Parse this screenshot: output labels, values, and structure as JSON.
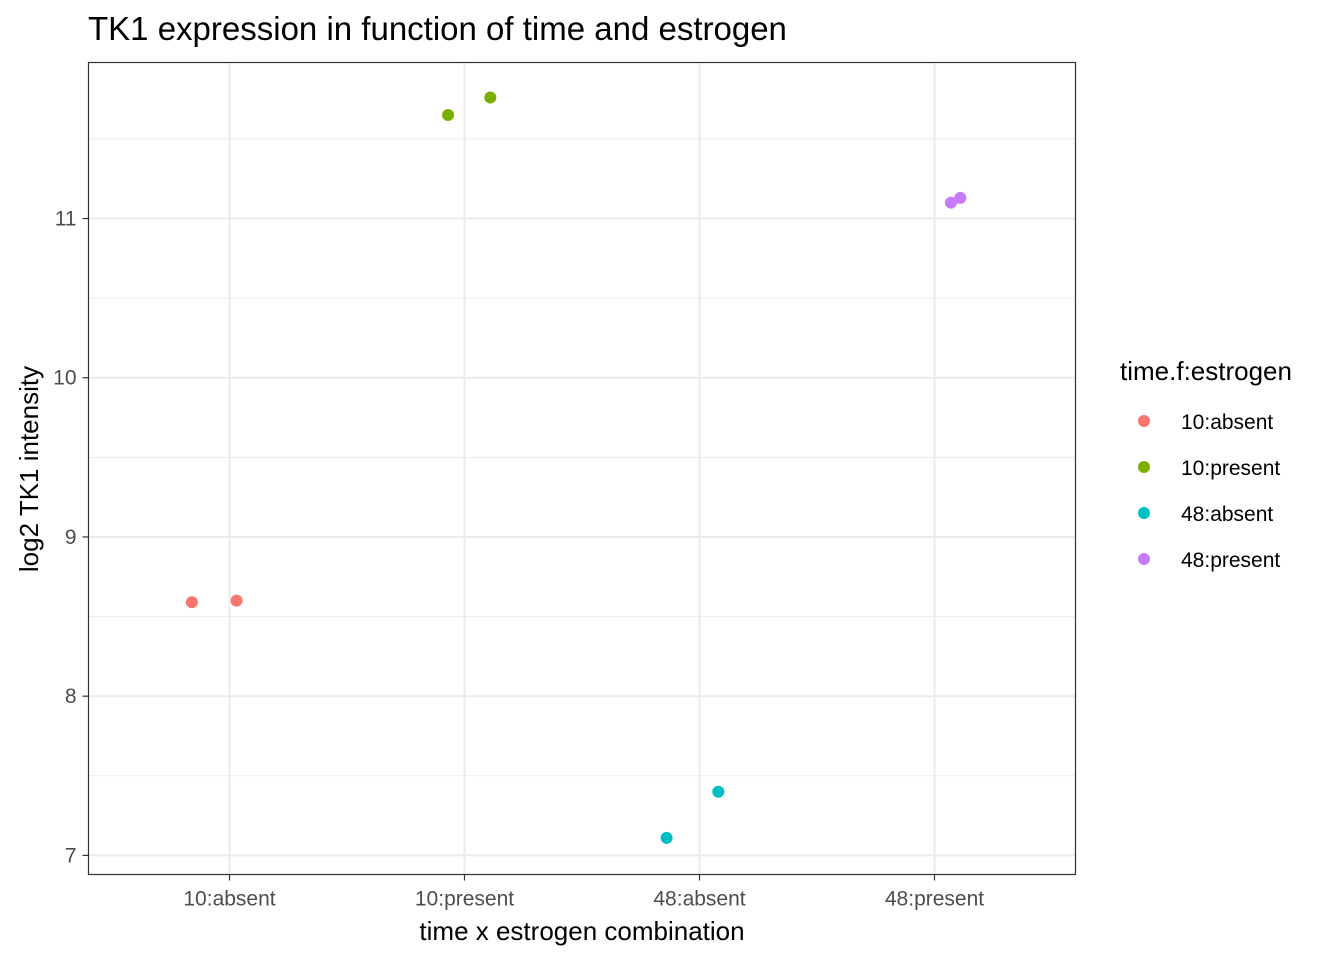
{
  "chart_data": {
    "type": "scatter",
    "title": "TK1 expression in function of time and estrogen",
    "xlabel": "time x estrogen combination",
    "ylabel": "log2 TK1 intensity",
    "categories": [
      "10:absent",
      "10:present",
      "48:absent",
      "48:present"
    ],
    "ylim": [
      6.88,
      11.98
    ],
    "yticks": [
      7,
      8,
      9,
      10,
      11
    ],
    "legend": {
      "title": "time.f:estrogen",
      "position": "right"
    },
    "series": [
      {
        "name": "10:absent",
        "color": "#F8766D",
        "points": [
          {
            "x": "10:absent",
            "jitter": -0.16,
            "y": 8.59
          },
          {
            "x": "10:absent",
            "jitter": 0.03,
            "y": 8.6
          }
        ]
      },
      {
        "name": "10:present",
        "color": "#7CAE00",
        "points": [
          {
            "x": "10:present",
            "jitter": -0.07,
            "y": 11.65
          },
          {
            "x": "10:present",
            "jitter": 0.11,
            "y": 11.76
          }
        ]
      },
      {
        "name": "48:absent",
        "color": "#00BFC4",
        "points": [
          {
            "x": "48:absent",
            "jitter": -0.14,
            "y": 7.11
          },
          {
            "x": "48:absent",
            "jitter": 0.08,
            "y": 7.4
          }
        ]
      },
      {
        "name": "48:present",
        "color": "#C77CFF",
        "points": [
          {
            "x": "48:present",
            "jitter": 0.07,
            "y": 11.1
          },
          {
            "x": "48:present",
            "jitter": 0.11,
            "y": 11.13
          }
        ]
      }
    ]
  }
}
